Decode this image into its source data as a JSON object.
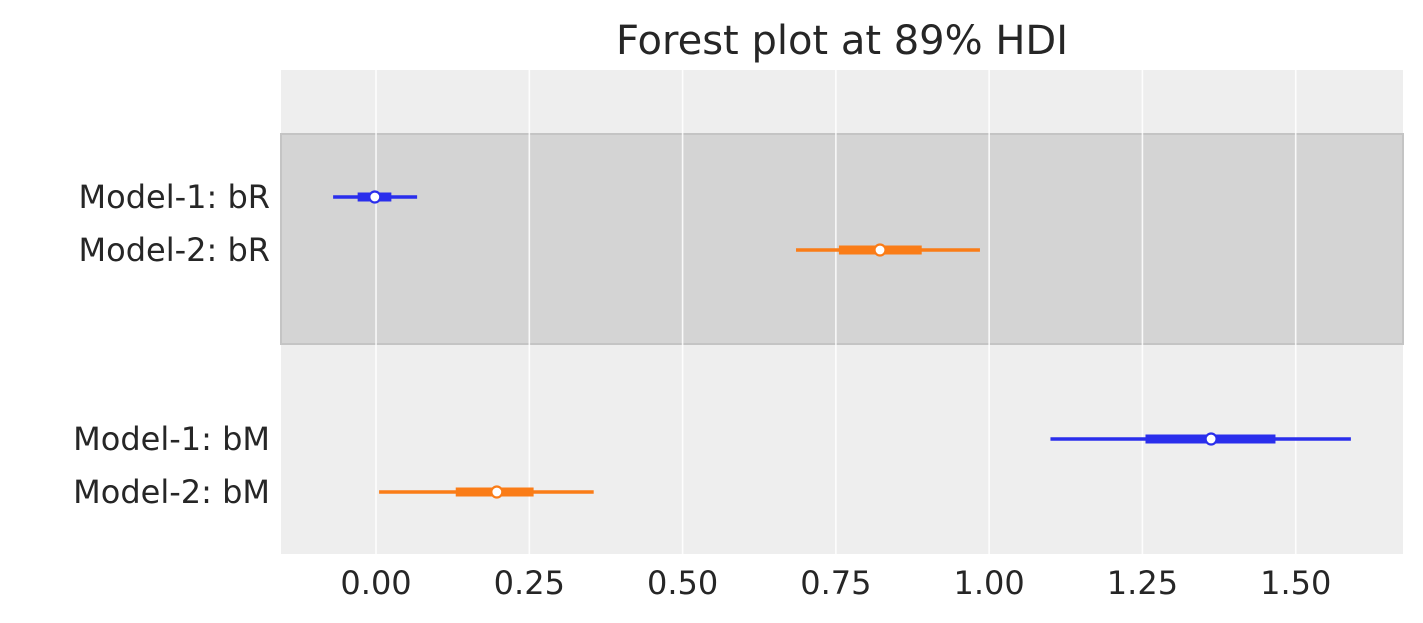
{
  "chart_data": {
    "type": "forest",
    "title": "Forest plot at 89% HDI",
    "xlabel": "",
    "ylabel": "",
    "xlim": [
      -0.155,
      1.675
    ],
    "x_ticks": [
      0.0,
      0.25,
      0.5,
      0.75,
      1.0,
      1.25,
      1.5
    ],
    "x_tick_labels": [
      "0.00",
      "0.25",
      "0.50",
      "0.75",
      "1.00",
      "1.25",
      "1.50"
    ],
    "grid": true,
    "colors": {
      "Model-1": "#2a2eec",
      "Model-2": "#fa7c17",
      "background": "#eeeeee",
      "band": "#d4d4d4",
      "grid": "#ffffff"
    },
    "groups": [
      {
        "variable": "bR",
        "shaded": true,
        "rows": [
          {
            "label": "Model-1: bR",
            "model": "Model-1",
            "median": -0.002,
            "hdi_low": -0.07,
            "hdi_high": 0.067,
            "iqr_low": -0.03,
            "iqr_high": 0.025
          },
          {
            "label": "Model-2: bR",
            "model": "Model-2",
            "median": 0.822,
            "hdi_low": 0.685,
            "hdi_high": 0.985,
            "iqr_low": 0.755,
            "iqr_high": 0.89
          }
        ]
      },
      {
        "variable": "bM",
        "shaded": false,
        "rows": [
          {
            "label": "Model-1: bM",
            "model": "Model-1",
            "median": 1.362,
            "hdi_low": 1.1,
            "hdi_high": 1.59,
            "iqr_low": 1.255,
            "iqr_high": 1.467
          },
          {
            "label": "Model-2: bM",
            "model": "Model-2",
            "median": 0.197,
            "hdi_low": 0.005,
            "hdi_high": 0.355,
            "iqr_low": 0.13,
            "iqr_high": 0.257
          }
        ]
      }
    ]
  }
}
